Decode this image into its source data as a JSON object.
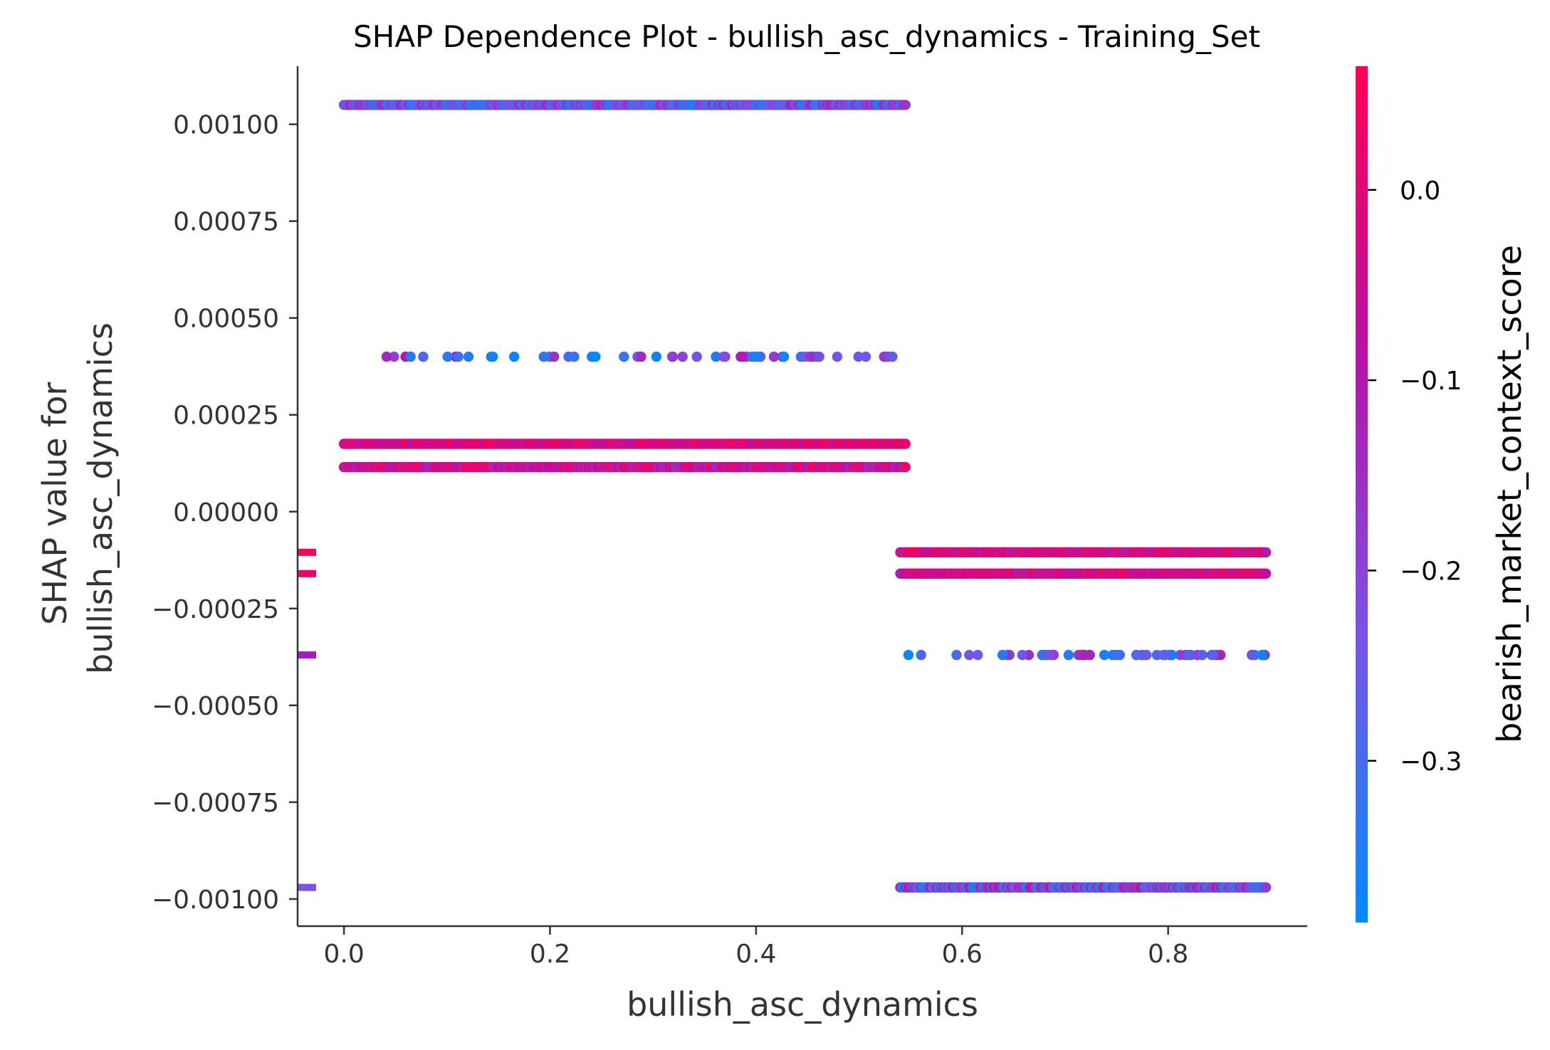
{
  "chart_data": {
    "type": "scatter",
    "title": "SHAP Dependence Plot - bullish_asc_dynamics - Training_Set",
    "xlabel": "bullish_asc_dynamics",
    "ylabel_lines": [
      "SHAP value for",
      "bullish_asc_dynamics"
    ],
    "xlim": [
      -0.045,
      0.935
    ],
    "ylim": [
      -0.00107,
      0.00115
    ],
    "x_ticks": [
      0.0,
      0.2,
      0.4,
      0.6,
      0.8
    ],
    "x_tick_labels": [
      "0.0",
      "0.2",
      "0.4",
      "0.6",
      "0.8"
    ],
    "y_ticks": [
      0.001,
      0.00075,
      0.0005,
      0.00025,
      0.0,
      -0.00025,
      -0.0005,
      -0.00075,
      -0.001
    ],
    "y_tick_labels": [
      "0.00100",
      "0.00075",
      "0.00050",
      "0.00025",
      "0.00000",
      "−0.00025",
      "−0.00050",
      "−0.00075",
      "−0.00100"
    ],
    "colorbar": {
      "label": "bearish_market_context_score",
      "range": [
        -0.385,
        0.065
      ],
      "ticks": [
        0.0,
        -0.1,
        -0.2,
        -0.3
      ],
      "tick_labels": [
        "0.0",
        "−0.1",
        "−0.2",
        "−0.3"
      ],
      "colormap": [
        "#008afb",
        "#7c52e4",
        "#b910a5",
        "#ff0052"
      ]
    },
    "grid": false,
    "legend": "none",
    "series": [
      {
        "y": 0.00105,
        "x_range": [
          0.0,
          0.545
        ],
        "color_range": [
          -0.385,
          -0.12
        ],
        "density": "dense"
      },
      {
        "y": 0.0004,
        "x_range": [
          0.0,
          0.535
        ],
        "color_range": [
          -0.385,
          -0.1
        ],
        "density": "sparse"
      },
      {
        "y": 0.000175,
        "x_range": [
          0.0,
          0.545
        ],
        "color_range": [
          -0.1,
          0.065
        ],
        "density": "dense"
      },
      {
        "y": 0.000115,
        "x_range": [
          0.0,
          0.545
        ],
        "color_range": [
          -0.15,
          0.065
        ],
        "density": "dense"
      },
      {
        "y": -0.000105,
        "x_range": [
          0.54,
          0.895
        ],
        "color_range": [
          -0.12,
          0.065
        ],
        "density": "dense"
      },
      {
        "y": -0.00016,
        "x_range": [
          0.54,
          0.895
        ],
        "color_range": [
          -0.12,
          0.065
        ],
        "density": "dense"
      },
      {
        "y": -0.00037,
        "x_range": [
          0.54,
          0.895
        ],
        "color_range": [
          -0.385,
          -0.1
        ],
        "density": "sparse"
      },
      {
        "y": -0.00097,
        "x_range": [
          0.54,
          0.895
        ],
        "color_range": [
          -0.385,
          -0.05
        ],
        "density": "dense"
      }
    ],
    "missing_value_markers": [
      {
        "y": -0.000105,
        "color": "#ff0052"
      },
      {
        "y": -0.00016,
        "color": "#f00066"
      },
      {
        "y": -0.00037,
        "color": "#a01ebd"
      },
      {
        "y": -0.00097,
        "color": "#7c52e4"
      }
    ]
  }
}
